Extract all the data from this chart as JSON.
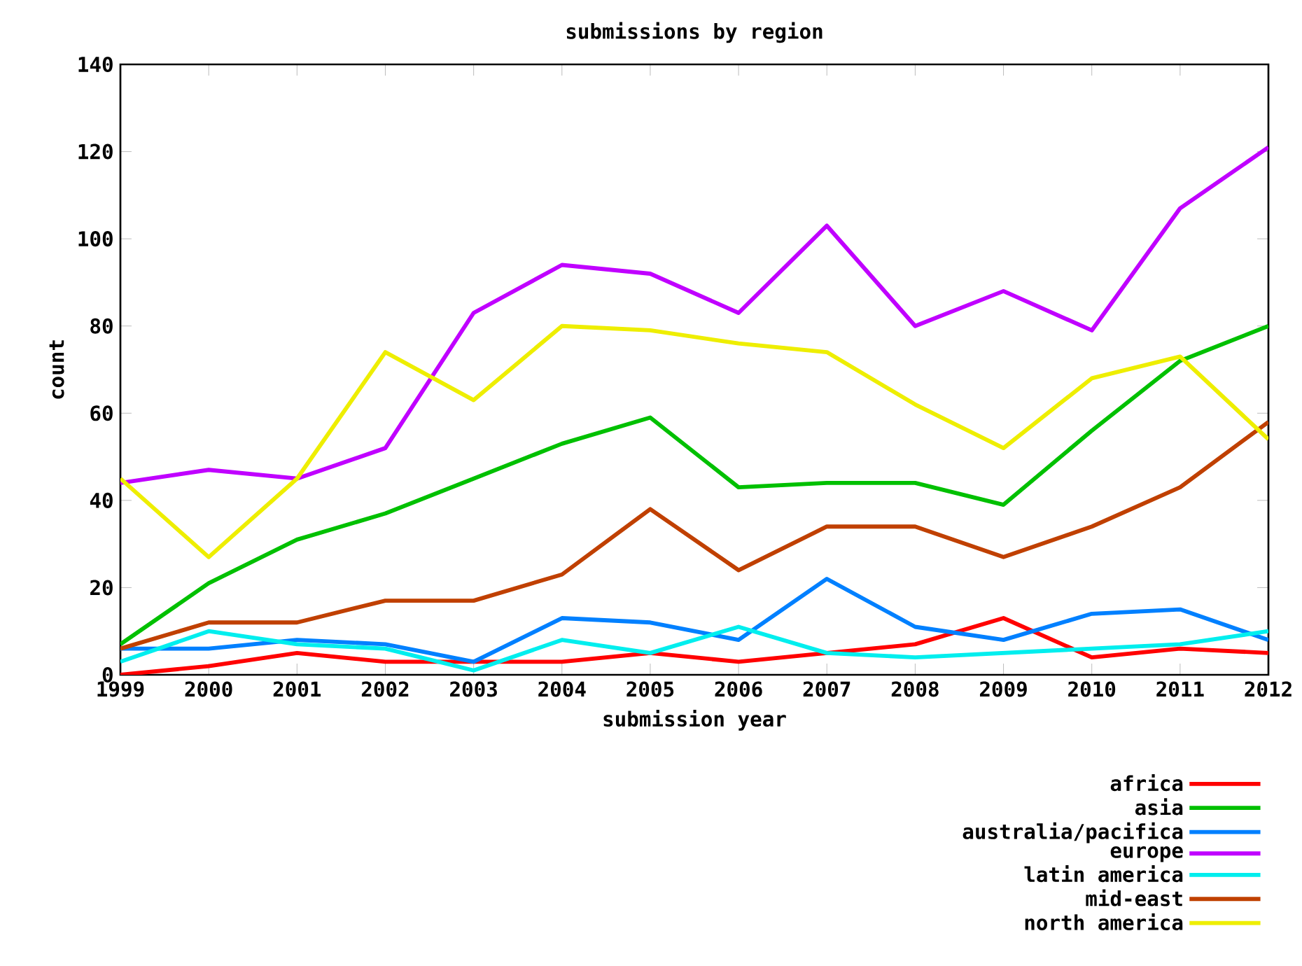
{
  "chart_data": {
    "type": "line",
    "title": "submissions by region",
    "xlabel": "submission year",
    "ylabel": "count",
    "x": [
      1999,
      2000,
      2001,
      2002,
      2003,
      2004,
      2005,
      2006,
      2007,
      2008,
      2009,
      2010,
      2011,
      2012
    ],
    "xlim": [
      1999,
      2012
    ],
    "xticks": [
      1999,
      2000,
      2001,
      2002,
      2003,
      2004,
      2005,
      2006,
      2007,
      2008,
      2009,
      2010,
      2011,
      2012
    ],
    "ylim": [
      0,
      140
    ],
    "yticks": [
      0,
      20,
      40,
      60,
      80,
      100,
      120,
      140
    ],
    "grid": false,
    "legend": "bottom right",
    "marker": "none",
    "line_style": "solid",
    "series": [
      {
        "name": "africa",
        "color": "#ff0000",
        "values": [
          0,
          2,
          5,
          3,
          3,
          3,
          5,
          3,
          5,
          7,
          13,
          4,
          6,
          5
        ]
      },
      {
        "name": "asia",
        "color": "#00c000",
        "values": [
          7,
          21,
          31,
          37,
          45,
          53,
          59,
          43,
          44,
          44,
          39,
          56,
          72,
          80
        ]
      },
      {
        "name": "australia/pacifica",
        "color": "#0080ff",
        "values": [
          6,
          6,
          8,
          7,
          3,
          13,
          12,
          8,
          22,
          11,
          8,
          14,
          15,
          8
        ]
      },
      {
        "name": "europe",
        "color": "#c000ff",
        "values": [
          44,
          47,
          45,
          52,
          83,
          94,
          92,
          83,
          103,
          80,
          88,
          79,
          107,
          121
        ]
      },
      {
        "name": "latin america",
        "color": "#00eeee",
        "values": [
          3,
          10,
          7,
          6,
          1,
          8,
          5,
          11,
          5,
          4,
          5,
          6,
          7,
          10
        ]
      },
      {
        "name": "mid-east",
        "color": "#c04000",
        "values": [
          6,
          12,
          12,
          17,
          17,
          23,
          38,
          24,
          34,
          34,
          27,
          34,
          43,
          58
        ]
      },
      {
        "name": "north america",
        "color": "#eeee00",
        "values": [
          45,
          27,
          45,
          74,
          63,
          80,
          79,
          76,
          74,
          62,
          52,
          68,
          73,
          54
        ]
      }
    ]
  }
}
